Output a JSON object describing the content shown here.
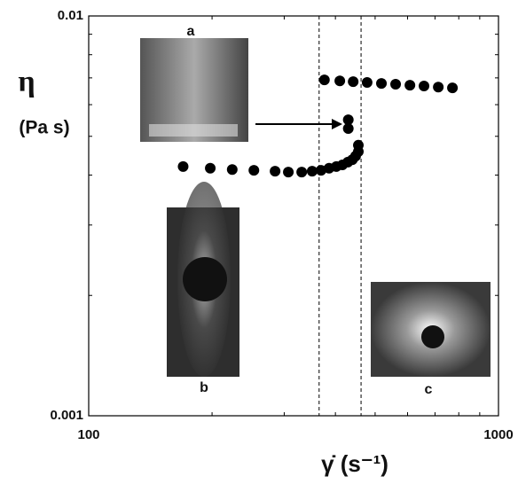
{
  "chart_data": {
    "type": "scatter",
    "y_label": "η",
    "y_unit": "(Pa s)",
    "x_label": "γ̇  (s⁻¹)",
    "x": [
      170,
      198,
      224,
      253,
      285,
      307,
      331,
      351,
      369,
      386,
      402,
      416,
      429,
      440,
      448,
      455,
      455,
      430,
      430,
      376,
      410,
      442,
      478,
      518,
      561,
      608,
      658,
      713,
      772
    ],
    "values": [
      0.0042,
      0.00416,
      0.00413,
      0.00411,
      0.00409,
      0.00407,
      0.00407,
      0.00409,
      0.00411,
      0.00416,
      0.0042,
      0.00424,
      0.00431,
      0.00437,
      0.00446,
      0.00458,
      0.00475,
      0.0055,
      0.00523,
      0.00692,
      0.00688,
      0.00685,
      0.00682,
      0.00678,
      0.00675,
      0.00671,
      0.00668,
      0.00664,
      0.00661
    ],
    "color": "#000000",
    "log_x": true,
    "log_y": true,
    "xlim": [
      100,
      1000
    ],
    "ylim": [
      0.001,
      0.01
    ],
    "xticks": [
      100,
      1000
    ],
    "yticks": [
      0.001,
      0.01
    ],
    "x_minor_ticks": [
      200,
      300,
      400,
      500,
      600,
      700,
      800,
      900
    ],
    "y_minor_ticks": [
      0.002,
      0.003,
      0.004,
      0.005,
      0.006,
      0.007,
      0.008,
      0.009
    ],
    "vlines": [
      365,
      462
    ],
    "insets": [
      "a",
      "b",
      "c"
    ]
  }
}
